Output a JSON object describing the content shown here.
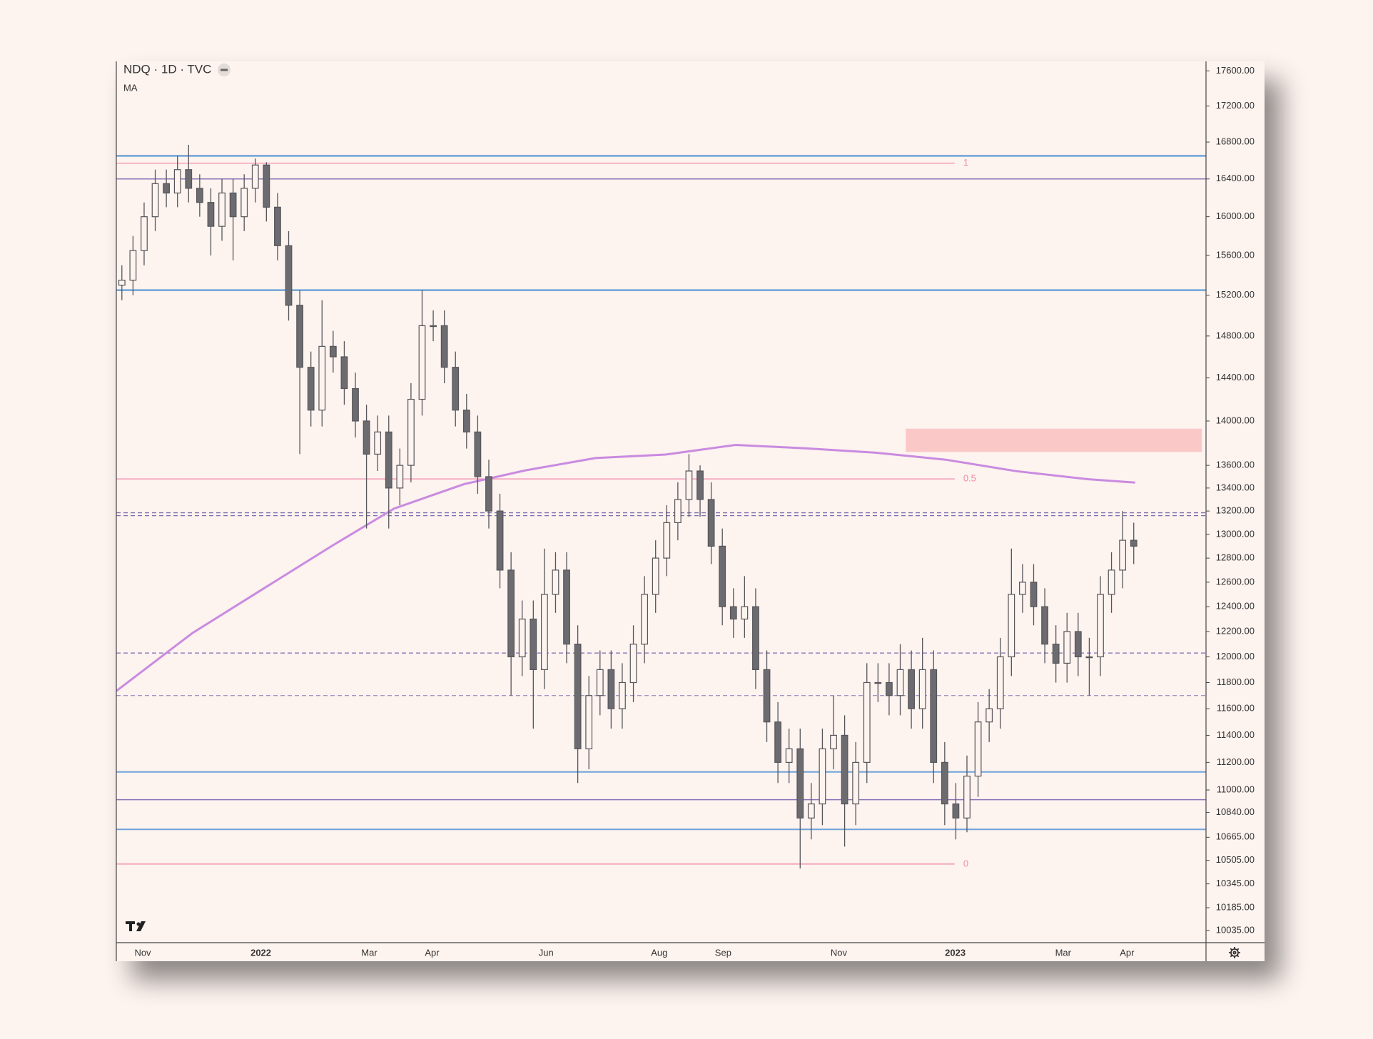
{
  "chart_data": {
    "type": "candlestick",
    "title": "NDQ · 1D · TVC",
    "indicator": "MA",
    "log_scale": true,
    "up_color": "#fdf3ef",
    "down_color": "#6b6b70",
    "wick_color": "#55555a",
    "xlim": [
      0,
      392
    ],
    "ylim": [
      9955,
      17710
    ],
    "xticks": [
      {
        "value": 9.5,
        "label": "Nov"
      },
      {
        "value": 52,
        "label": "2022"
      },
      {
        "value": 91,
        "label": "Mar"
      },
      {
        "value": 113.6,
        "label": "Apr"
      },
      {
        "value": 154.6,
        "label": "Jun"
      },
      {
        "value": 195.3,
        "label": "Aug"
      },
      {
        "value": 218.3,
        "label": "Sep"
      },
      {
        "value": 259.9,
        "label": "Nov"
      },
      {
        "value": 301.8,
        "label": "2023"
      },
      {
        "value": 340.6,
        "label": "Mar"
      },
      {
        "value": 363.6,
        "label": "Apr"
      }
    ],
    "yticks": [
      {
        "value": 17600,
        "label": "17600.00"
      },
      {
        "value": 17200,
        "label": "17200.00"
      },
      {
        "value": 16800,
        "label": "16800.00"
      },
      {
        "value": 16400,
        "label": "16400.00"
      },
      {
        "value": 16000,
        "label": "16000.00"
      },
      {
        "value": 15600,
        "label": "15600.00"
      },
      {
        "value": 15200,
        "label": "15200.00"
      },
      {
        "value": 14800,
        "label": "14800.00"
      },
      {
        "value": 14400,
        "label": "14400.00"
      },
      {
        "value": 14000,
        "label": "14000.00"
      },
      {
        "value": 13600,
        "label": "13600.00"
      },
      {
        "value": 13400,
        "label": "13400.00"
      },
      {
        "value": 13200,
        "label": "13200.00"
      },
      {
        "value": 13000,
        "label": "13000.00"
      },
      {
        "value": 12800,
        "label": "12800.00"
      },
      {
        "value": 12600,
        "label": "12600.00"
      },
      {
        "value": 12400,
        "label": "12400.00"
      },
      {
        "value": 12200,
        "label": "12200.00"
      },
      {
        "value": 12000,
        "label": "12000.00"
      },
      {
        "value": 11800,
        "label": "11800.00"
      },
      {
        "value": 11600,
        "label": "11600.00"
      },
      {
        "value": 11400,
        "label": "11400.00"
      },
      {
        "value": 11200,
        "label": "11200.00"
      },
      {
        "value": 11000,
        "label": "11000.00"
      },
      {
        "value": 10840,
        "label": "10840.00"
      },
      {
        "value": 10665,
        "label": "10665.00"
      },
      {
        "value": 10505,
        "label": "10505.00"
      },
      {
        "value": 10345,
        "label": "10345.00"
      },
      {
        "value": 10185,
        "label": "10185.00"
      },
      {
        "value": 10035,
        "label": "10035.00"
      }
    ],
    "x": [
      2,
      6,
      10,
      14,
      18,
      22,
      26,
      30,
      34,
      38,
      42,
      46,
      50,
      54,
      58,
      62,
      66,
      70,
      74,
      78,
      82,
      86,
      90,
      94,
      98,
      102,
      106,
      110,
      114,
      118,
      122,
      126,
      130,
      134,
      138,
      142,
      146,
      150,
      154,
      158,
      162,
      166,
      170,
      174,
      178,
      182,
      186,
      190,
      194,
      198,
      202,
      206,
      210,
      214,
      218,
      222,
      226,
      230,
      234,
      238,
      242,
      246,
      250,
      254,
      258,
      262,
      266,
      270,
      274,
      278,
      282,
      286,
      290,
      294,
      298,
      302,
      306,
      310,
      314,
      318,
      322,
      326,
      330,
      334,
      338,
      342,
      346,
      350,
      354,
      358,
      362,
      366
    ],
    "open": [
      15300,
      15350,
      15650,
      16000,
      16350,
      16250,
      16500,
      16300,
      16150,
      15900,
      16250,
      16000,
      16300,
      16550,
      16100,
      15700,
      15100,
      14500,
      14100,
      14700,
      14600,
      14300,
      14000,
      13700,
      13900,
      13400,
      13600,
      14200,
      14900,
      14900,
      14500,
      14100,
      13900,
      13500,
      13200,
      12700,
      12000,
      12300,
      11900,
      12500,
      12700,
      12100,
      11300,
      11700,
      11900,
      11600,
      11800,
      12100,
      12500,
      12800,
      13100,
      13300,
      13550,
      13300,
      12900,
      12400,
      12300,
      12400,
      11900,
      11500,
      11200,
      11300,
      10800,
      10900,
      11300,
      11400,
      10900,
      11200,
      11800,
      11800,
      11700,
      11900,
      11600,
      11900,
      11200,
      10900,
      10800,
      11100,
      11500,
      11600,
      12000,
      12500,
      12600,
      12400,
      12100,
      11950,
      12200,
      12000,
      12000,
      12500,
      12700,
      12950
    ],
    "high": [
      15500,
      15800,
      16150,
      16500,
      16500,
      16650,
      16770,
      16450,
      16300,
      16400,
      16400,
      16450,
      16620,
      16580,
      16250,
      15850,
      15250,
      14650,
      15150,
      14850,
      14750,
      14450,
      14150,
      14050,
      14050,
      13750,
      14350,
      15250,
      15050,
      15050,
      14650,
      14250,
      14050,
      13650,
      13350,
      12850,
      12450,
      12450,
      12880,
      12850,
      12850,
      12250,
      11850,
      12050,
      12050,
      11950,
      12250,
      12650,
      12950,
      13250,
      13450,
      13700,
      13600,
      13450,
      13050,
      12550,
      12650,
      12550,
      12050,
      11650,
      11450,
      11450,
      11050,
      11450,
      11700,
      11550,
      11350,
      11950,
      11950,
      11950,
      12100,
      12050,
      12150,
      12050,
      11350,
      11050,
      11250,
      11650,
      11750,
      12150,
      12880,
      12750,
      12750,
      12550,
      12250,
      12350,
      12350,
      12150,
      12650,
      12850,
      13200,
      13100
    ],
    "low": [
      15150,
      15200,
      15500,
      15850,
      16100,
      16100,
      16150,
      16000,
      15600,
      15750,
      15550,
      15850,
      16150,
      15950,
      15550,
      14950,
      13700,
      13950,
      13950,
      14450,
      14150,
      13850,
      13050,
      13550,
      13050,
      13250,
      13450,
      14050,
      14750,
      14350,
      13950,
      13750,
      13350,
      13050,
      12550,
      11700,
      11850,
      11450,
      11750,
      12350,
      11950,
      11050,
      11150,
      11550,
      11450,
      11450,
      11650,
      11950,
      12350,
      12650,
      12950,
      13150,
      13150,
      12750,
      12250,
      12150,
      12150,
      11750,
      11350,
      11050,
      11050,
      10450,
      10650,
      10750,
      11150,
      10600,
      10750,
      11050,
      11650,
      11550,
      11550,
      11450,
      11450,
      11050,
      10750,
      10650,
      10700,
      10950,
      11350,
      11450,
      11850,
      12350,
      12250,
      11950,
      11800,
      11800,
      11850,
      11700,
      11850,
      12350,
      12550,
      12750
    ],
    "close": [
      15350,
      15650,
      16000,
      16350,
      16250,
      16500,
      16300,
      16150,
      15900,
      16250,
      16000,
      16300,
      16550,
      16100,
      15700,
      15100,
      14500,
      14100,
      14700,
      14600,
      14300,
      14000,
      13700,
      13900,
      13400,
      13600,
      14200,
      14900,
      14900,
      14500,
      14100,
      13900,
      13500,
      13200,
      12700,
      12000,
      12300,
      11900,
      12500,
      12700,
      12100,
      11300,
      11700,
      11900,
      11600,
      11800,
      12100,
      12500,
      12800,
      13100,
      13300,
      13550,
      13300,
      12900,
      12400,
      12300,
      12400,
      11900,
      11500,
      11200,
      11300,
      10800,
      10900,
      11300,
      11400,
      10900,
      11200,
      11800,
      11800,
      11700,
      11900,
      11600,
      11900,
      11200,
      10900,
      10800,
      11100,
      11500,
      11600,
      12000,
      12500,
      12600,
      12400,
      12100,
      11950,
      12200,
      12000,
      12000,
      12500,
      12700,
      12950,
      12900
    ],
    "ma": {
      "color": "#c98be0",
      "x": [
        0,
        27.4,
        52.6,
        77.8,
        99.9,
        125.1,
        147.2,
        172.4,
        197.6,
        222.8,
        248,
        273.2,
        298.4,
        323.6,
        348.8,
        366.5
      ],
      "values": [
        11735,
        12188,
        12542,
        12906,
        13221,
        13434,
        13556,
        13665,
        13696,
        13783,
        13752,
        13713,
        13650,
        13549,
        13479,
        13448
      ]
    },
    "levels": [
      {
        "price": 16650,
        "color": "#6fa3d8",
        "style": "solid",
        "width": 2.5
      },
      {
        "price": 16400,
        "color": "#8a74b8",
        "style": "solid",
        "width": 1.5
      },
      {
        "price": 15250,
        "color": "#6fa3d8",
        "style": "solid",
        "width": 2.5
      },
      {
        "price": 13185,
        "color": "#7d6cb0",
        "style": "dashed",
        "width": 1.3
      },
      {
        "price": 13160,
        "color": "#7d6cb0",
        "style": "dashed",
        "width": 1.3
      },
      {
        "price": 12030,
        "color": "#7d6cb0",
        "style": "dashed",
        "width": 1.3
      },
      {
        "price": 11700,
        "color": "#8a74b8",
        "style": "dashed",
        "width": 1
      },
      {
        "price": 11130,
        "color": "#6fa3d8",
        "style": "solid",
        "width": 2
      },
      {
        "price": 10930,
        "color": "#8a74b8",
        "style": "solid",
        "width": 1.5
      },
      {
        "price": 10720,
        "color": "#6fa3d8",
        "style": "solid",
        "width": 2
      }
    ],
    "fib": {
      "color": "#f08aab",
      "end": 301.6,
      "levels": [
        {
          "price": 16570,
          "label": "1"
        },
        {
          "price": 13480,
          "label": "0.5"
        },
        {
          "price": 10480,
          "label": "0"
        }
      ]
    },
    "zone": {
      "x": [
        284,
        390.5
      ],
      "price": [
        13720,
        13930
      ],
      "color": "#fbc8c8"
    }
  }
}
